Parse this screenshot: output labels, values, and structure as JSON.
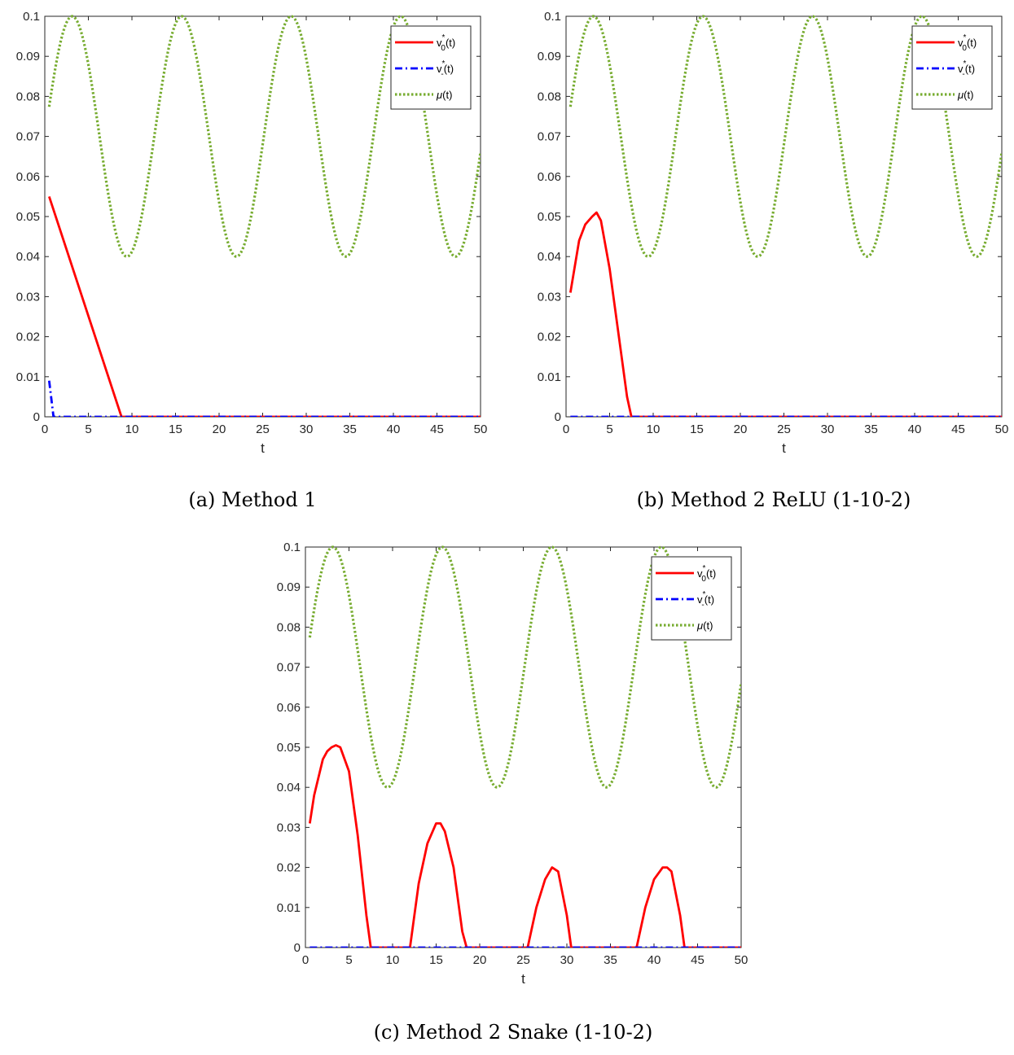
{
  "chart_data": [
    {
      "type": "line",
      "caption": "(a) Method 1",
      "xlabel": "t",
      "ylabel": "",
      "xlim": [
        0,
        50
      ],
      "ylim": [
        0,
        0.1
      ],
      "xticks": [
        "0",
        "5",
        "10",
        "15",
        "20",
        "25",
        "30",
        "35",
        "40",
        "45",
        "50"
      ],
      "yticks": [
        "0",
        "0.01",
        "0.02",
        "0.03",
        "0.04",
        "0.05",
        "0.06",
        "0.07",
        "0.08",
        "0.09",
        "0.1"
      ],
      "legend_position": "top-right",
      "series": [
        {
          "name": "v0*(t)",
          "label_main": "v",
          "label_sub": "0",
          "label_sup": "*",
          "label_tail": "(t)",
          "color": "#ff0000",
          "style": "solid",
          "x": [
            0.5,
            8.8,
            9.0,
            50
          ],
          "y": [
            0.055,
            0.0,
            0.0,
            0.0
          ]
        },
        {
          "name": "v-*(t)",
          "label_main": "v",
          "label_sub": "-",
          "label_sup": "*",
          "label_tail": "(t)",
          "color": "#0000ff",
          "style": "dashdot",
          "x": [
            0.5,
            1.0,
            50
          ],
          "y": [
            0.009,
            0.0,
            0.0
          ]
        },
        {
          "name": "μ(t)",
          "label_main": "μ",
          "label_sub": "",
          "label_sup": "",
          "label_tail": "(t)",
          "color": "#77ac30",
          "style": "dotted",
          "function": "0.07 + 0.03*sin(t/2)",
          "x_range": [
            0.5,
            50
          ]
        }
      ]
    },
    {
      "type": "line",
      "caption": "(b) Method 2 ReLU (1-10-2)",
      "xlabel": "t",
      "ylabel": "",
      "xlim": [
        0,
        50
      ],
      "ylim": [
        0,
        0.1
      ],
      "xticks": [
        "0",
        "5",
        "10",
        "15",
        "20",
        "25",
        "30",
        "35",
        "40",
        "45",
        "50"
      ],
      "yticks": [
        "0",
        "0.01",
        "0.02",
        "0.03",
        "0.04",
        "0.05",
        "0.06",
        "0.07",
        "0.08",
        "0.09",
        "0.1"
      ],
      "legend_position": "top-right",
      "series": [
        {
          "name": "v0*(t)",
          "label_main": "v",
          "label_sub": "0",
          "label_sup": "*",
          "label_tail": "(t)",
          "color": "#ff0000",
          "style": "solid",
          "x": [
            0.5,
            1.5,
            2.2,
            3.0,
            3.5,
            4.0,
            5.0,
            6.0,
            7.0,
            7.5,
            8.0,
            50
          ],
          "y": [
            0.031,
            0.044,
            0.048,
            0.05,
            0.051,
            0.049,
            0.037,
            0.021,
            0.005,
            0.0,
            0.0,
            0.0
          ]
        },
        {
          "name": "v-*(t)",
          "label_main": "v",
          "label_sub": "-",
          "label_sup": "*",
          "label_tail": "(t)",
          "color": "#0000ff",
          "style": "dashdot",
          "x": [
            0.5,
            50
          ],
          "y": [
            0.0,
            0.0
          ]
        },
        {
          "name": "μ(t)",
          "label_main": "μ",
          "label_sub": "",
          "label_sup": "",
          "label_tail": "(t)",
          "color": "#77ac30",
          "style": "dotted",
          "function": "0.07 + 0.03*sin(t/2)",
          "x_range": [
            0.5,
            50
          ]
        }
      ]
    },
    {
      "type": "line",
      "caption": "(c) Method 2 Snake (1-10-2)",
      "xlabel": "t",
      "ylabel": "",
      "xlim": [
        0,
        50
      ],
      "ylim": [
        0,
        0.1
      ],
      "xticks": [
        "0",
        "5",
        "10",
        "15",
        "20",
        "25",
        "30",
        "35",
        "40",
        "45",
        "50"
      ],
      "yticks": [
        "0",
        "0.01",
        "0.02",
        "0.03",
        "0.04",
        "0.05",
        "0.06",
        "0.07",
        "0.08",
        "0.09",
        "0.1"
      ],
      "legend_position": "top-right",
      "series": [
        {
          "name": "v0*(t)",
          "label_main": "v",
          "label_sub": "0",
          "label_sup": "*",
          "label_tail": "(t)",
          "color": "#ff0000",
          "style": "solid",
          "x": [
            0.5,
            1.0,
            2.0,
            2.5,
            3.0,
            3.5,
            4.0,
            5.0,
            6.0,
            7.0,
            7.5,
            12.0,
            13.0,
            14.0,
            15.0,
            15.5,
            16.0,
            17.0,
            18.0,
            18.5,
            25.5,
            26.5,
            27.5,
            28.3,
            29.0,
            30.0,
            30.5,
            38.0,
            39.0,
            40.0,
            41.0,
            41.5,
            42.0,
            43.0,
            43.5,
            50
          ],
          "y": [
            0.031,
            0.038,
            0.047,
            0.049,
            0.05,
            0.0505,
            0.05,
            0.044,
            0.028,
            0.008,
            0.0,
            0.0,
            0.016,
            0.026,
            0.031,
            0.031,
            0.029,
            0.02,
            0.004,
            0.0,
            0.0,
            0.01,
            0.017,
            0.02,
            0.019,
            0.008,
            0.0,
            0.0,
            0.01,
            0.017,
            0.02,
            0.02,
            0.019,
            0.008,
            0.0,
            0.0
          ]
        },
        {
          "name": "v-*(t)",
          "label_main": "v",
          "label_sub": "-",
          "label_sup": "*",
          "label_tail": "(t)",
          "color": "#0000ff",
          "style": "dashdot",
          "x": [
            0.5,
            50
          ],
          "y": [
            0.0,
            0.0
          ]
        },
        {
          "name": "μ(t)",
          "label_main": "μ",
          "label_sub": "",
          "label_sup": "",
          "label_tail": "(t)",
          "color": "#77ac30",
          "style": "dotted",
          "function": "0.07 + 0.03*sin(t/2)",
          "x_range": [
            0.5,
            50
          ]
        }
      ]
    }
  ]
}
